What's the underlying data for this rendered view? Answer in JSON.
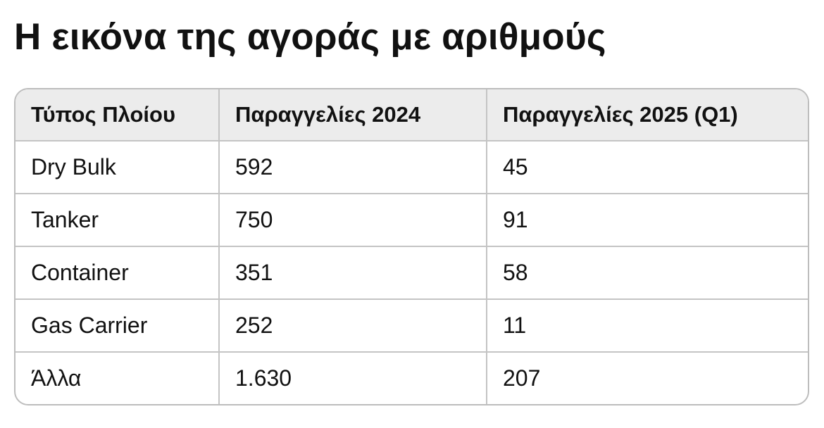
{
  "title": "Η εικόνα της αγοράς με αριθμούς",
  "table": {
    "headers": [
      "Τύπος Πλοίου",
      "Παραγγελίες 2024",
      "Παραγγελίες 2025 (Q1)"
    ],
    "rows": [
      [
        "Dry Bulk",
        "592",
        "45"
      ],
      [
        "Tanker",
        "750",
        "91"
      ],
      [
        "Container",
        "351",
        "58"
      ],
      [
        "Gas Carrier",
        "252",
        "11"
      ],
      [
        "Άλλα",
        "1.630",
        "207"
      ]
    ]
  }
}
